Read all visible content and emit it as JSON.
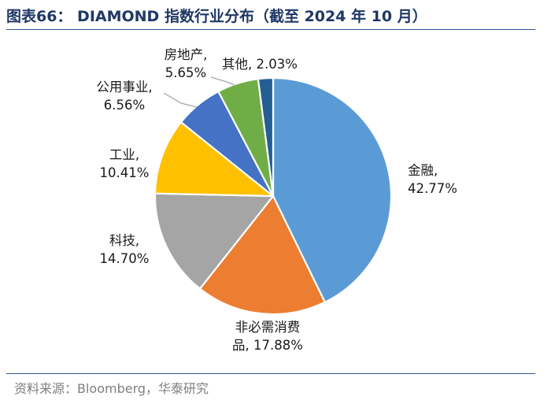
{
  "header": {
    "title": "图表66： DIAMOND 指数行业分布（截至 2024 年 10 月）"
  },
  "footer": {
    "source": "资料来源：Bloomberg，华泰研究"
  },
  "colors": {
    "title": "#1f3864",
    "rule": "#2f5597",
    "source": "#7f7f7f"
  },
  "chart_data": {
    "type": "pie",
    "title": "",
    "unit": "%",
    "slices": [
      {
        "name": "金融",
        "value": 42.77,
        "label": "42.77%",
        "color": "#5b9bd5"
      },
      {
        "name": "非必需消费品",
        "value": 17.88,
        "label": "17.88%",
        "color": "#ed7d31"
      },
      {
        "name": "科技",
        "value": 14.7,
        "label": "14.70%",
        "color": "#a5a5a5"
      },
      {
        "name": "工业",
        "value": 10.41,
        "label": "10.41%",
        "color": "#ffc000"
      },
      {
        "name": "公用事业",
        "value": 6.56,
        "label": "6.56%",
        "color": "#4472c4"
      },
      {
        "name": "房地产",
        "value": 5.65,
        "label": "5.65%",
        "color": "#70ad47"
      },
      {
        "name": "其他",
        "value": 2.03,
        "label": "2.03%",
        "color": "#255e91"
      }
    ]
  }
}
